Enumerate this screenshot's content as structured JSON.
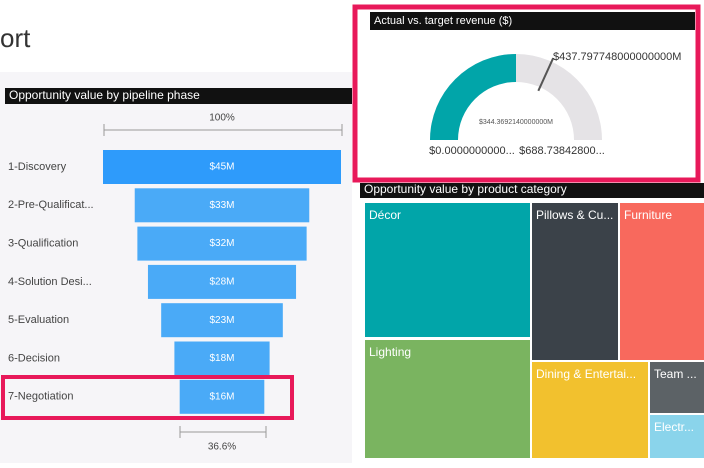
{
  "header": {
    "title": "ort"
  },
  "funnel": {
    "title": "Opportunity value by pipeline phase",
    "top_label": "100%",
    "bottom_label": "36.6%",
    "stages": [
      {
        "name": "1-Discovery",
        "value": 45,
        "value_label": "$45M"
      },
      {
        "name": "2-Pre-Qualificat...",
        "value": 33,
        "value_label": "$33M"
      },
      {
        "name": "3-Qualification",
        "value": 32,
        "value_label": "$32M"
      },
      {
        "name": "4-Solution Desi...",
        "value": 28,
        "value_label": "$28M"
      },
      {
        "name": "5-Evaluation",
        "value": 23,
        "value_label": "$23M"
      },
      {
        "name": "6-Decision",
        "value": 18,
        "value_label": "$18M"
      },
      {
        "name": "7-Negotiation",
        "value": 16,
        "value_label": "$16M"
      }
    ]
  },
  "gauge": {
    "title": "Actual vs. target  revenue ($)",
    "min": 0,
    "min_label": "$0.0000000000...",
    "max": 688.738428,
    "max_label": "$688.73842800...",
    "value": 344.369214,
    "value_label": "$344.3692140000000M",
    "target": 437.797748,
    "target_label": "$437.797748000000000M"
  },
  "treemap": {
    "title": "Opportunity value by product category",
    "tiles": [
      {
        "label": "Décor"
      },
      {
        "label": "Pillows & Cu..."
      },
      {
        "label": "Furniture"
      },
      {
        "label": "Lighting"
      },
      {
        "label": "Dining & Entertai..."
      },
      {
        "label": "Team ..."
      },
      {
        "label": "Electr..."
      }
    ]
  }
}
